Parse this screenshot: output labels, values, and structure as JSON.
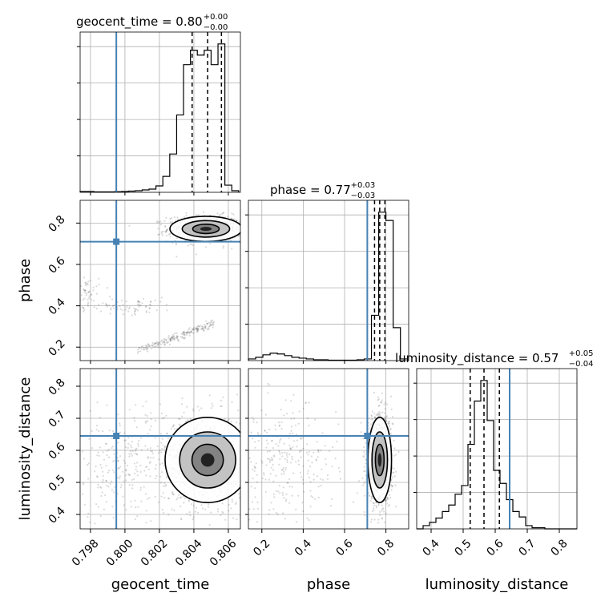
{
  "chart_data": {
    "type": "corner",
    "parameters": [
      "geocent_time",
      "phase",
      "luminosity_distance"
    ],
    "truths": {
      "geocent_time": 0.7995,
      "phase": 0.71,
      "luminosity_distance": 0.645
    },
    "ranges": {
      "geocent_time": [
        0.7974,
        0.8067
      ],
      "phase": [
        0.135,
        0.91
      ],
      "luminosity_distance": [
        0.355,
        0.855
      ]
    },
    "grid": true,
    "titles": [
      {
        "param": "geocent_time",
        "label": "geocent_time = 0.80",
        "plus": "+0.00",
        "minus": "−0.00"
      },
      {
        "param": "phase",
        "label": "phase = 0.77",
        "plus": "+0.03",
        "minus": "−0.03"
      },
      {
        "param": "luminosity_distance",
        "label": "luminosity_distance = 0.57",
        "plus": "+0.05",
        "minus": "−0.04"
      }
    ],
    "quantiles": {
      "geocent_time": [
        0.8039,
        0.8048,
        0.8056
      ],
      "phase": [
        0.745,
        0.77,
        0.795
      ],
      "luminosity_distance": [
        0.522,
        0.565,
        0.613
      ]
    },
    "ticks": {
      "geocent_time": [
        "0.798",
        "0.800",
        "0.802",
        "0.804",
        "0.806"
      ],
      "phase_y": [
        "0.2",
        "0.4",
        "0.6",
        "0.8"
      ],
      "phase_x": [
        "0.2",
        "0.4",
        "0.6",
        "0.8"
      ],
      "luminosity_distance_y": [
        "0.4",
        "0.5",
        "0.6",
        "0.7",
        "0.8"
      ],
      "luminosity_distance_x": [
        "0.4",
        "0.5",
        "0.6",
        "0.7",
        "0.8"
      ]
    },
    "histograms": {
      "geocent_time": {
        "edges": [
          0.7974,
          0.7978,
          0.7982,
          0.7986,
          0.799,
          0.7994,
          0.7998,
          0.8002,
          0.8006,
          0.801,
          0.8014,
          0.8018,
          0.8022,
          0.8026,
          0.803,
          0.8034,
          0.8038,
          0.8042,
          0.8046,
          0.805,
          0.8054,
          0.8058,
          0.8062,
          0.8066
        ],
        "counts": [
          1,
          1,
          0.5,
          0.5,
          0.5,
          0.8,
          1,
          1.5,
          2,
          3,
          4,
          8,
          20,
          48,
          97,
          160,
          178,
          172,
          178,
          160,
          186,
          9,
          2
        ]
      },
      "phase": {
        "edges": [
          0.135,
          0.17,
          0.205,
          0.24,
          0.275,
          0.31,
          0.345,
          0.38,
          0.415,
          0.45,
          0.485,
          0.52,
          0.555,
          0.59,
          0.625,
          0.66,
          0.695,
          0.73,
          0.765,
          0.8,
          0.835,
          0.87,
          0.905
        ],
        "counts": [
          2,
          4,
          7,
          9,
          8,
          6,
          4,
          3,
          2,
          1,
          1,
          0.5,
          0.5,
          0.5,
          0.5,
          1,
          2,
          55,
          180,
          170,
          40,
          2
        ]
      },
      "luminosity_distance": {
        "edges": [
          0.355,
          0.375,
          0.395,
          0.415,
          0.435,
          0.455,
          0.475,
          0.495,
          0.515,
          0.535,
          0.555,
          0.575,
          0.595,
          0.615,
          0.635,
          0.655,
          0.675,
          0.695,
          0.715,
          0.735,
          0.755,
          0.775,
          0.795,
          0.815,
          0.835,
          0.855
        ],
        "counts": [
          0,
          3,
          6,
          10,
          16,
          22,
          32,
          40,
          78,
          118,
          137,
          100,
          54,
          42,
          27,
          16,
          11,
          3,
          1,
          1,
          0,
          0,
          0,
          0,
          0
        ]
      }
    },
    "samples_2d": {
      "geocent_time_phase": [
        {
          "x": 0.8047,
          "y": 0.772,
          "sx": 0.0011,
          "sy": 0.032,
          "w": 0.62
        },
        {
          "x": 0.8025,
          "y": 0.27,
          "sx": 0.0016,
          "sy": 0.05,
          "w": 0.14
        },
        {
          "x": 0.8,
          "y": 0.4,
          "sx": 0.0015,
          "sy": 0.02,
          "w": 0.06
        },
        {
          "x": 0.7977,
          "y": 0.47,
          "sx": 0.0004,
          "sy": 0.04,
          "w": 0.04
        }
      ],
      "geocent_time_luminosity_distance": [
        {
          "x": 0.8048,
          "y": 0.57,
          "sx": 0.0013,
          "sy": 0.07,
          "w": 0.8
        },
        {
          "x": 0.8,
          "y": 0.56,
          "sx": 0.002,
          "sy": 0.09,
          "w": 0.2
        }
      ],
      "phase_luminosity_distance": [
        {
          "x": 0.77,
          "y": 0.57,
          "sx": 0.03,
          "sy": 0.07,
          "w": 0.8
        },
        {
          "x": 0.31,
          "y": 0.56,
          "sx": 0.13,
          "sy": 0.09,
          "w": 0.2
        }
      ]
    }
  }
}
